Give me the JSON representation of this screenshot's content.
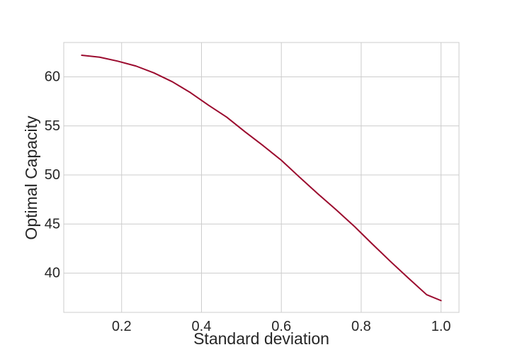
{
  "chart_data": {
    "type": "line",
    "xlabel": "Standard deviation",
    "ylabel": "Optimal Capacity",
    "xlim": [
      0.055,
      1.045
    ],
    "ylim": [
      36.0,
      63.5
    ],
    "xticks": [
      0.2,
      0.4,
      0.6,
      0.8,
      1.0
    ],
    "xtick_labels": [
      "0.2",
      "0.4",
      "0.6",
      "0.8",
      "1.0"
    ],
    "yticks": [
      40,
      45,
      50,
      55,
      60
    ],
    "ytick_labels": [
      "40",
      "45",
      "50",
      "55",
      "60"
    ],
    "grid": true,
    "legend": "none",
    "series": [
      {
        "color": "#9b0a2e",
        "x": [
          0.1,
          0.145,
          0.19,
          0.236,
          0.281,
          0.327,
          0.372,
          0.418,
          0.463,
          0.509,
          0.554,
          0.6,
          0.645,
          0.691,
          0.736,
          0.782,
          0.827,
          0.873,
          0.918,
          0.964,
          1.0
        ],
        "y": [
          62.2,
          62.0,
          61.6,
          61.1,
          60.4,
          59.5,
          58.4,
          57.1,
          55.9,
          54.4,
          53.0,
          51.5,
          49.8,
          48.1,
          46.5,
          44.8,
          43.0,
          41.2,
          39.5,
          37.8,
          37.2
        ]
      }
    ]
  }
}
